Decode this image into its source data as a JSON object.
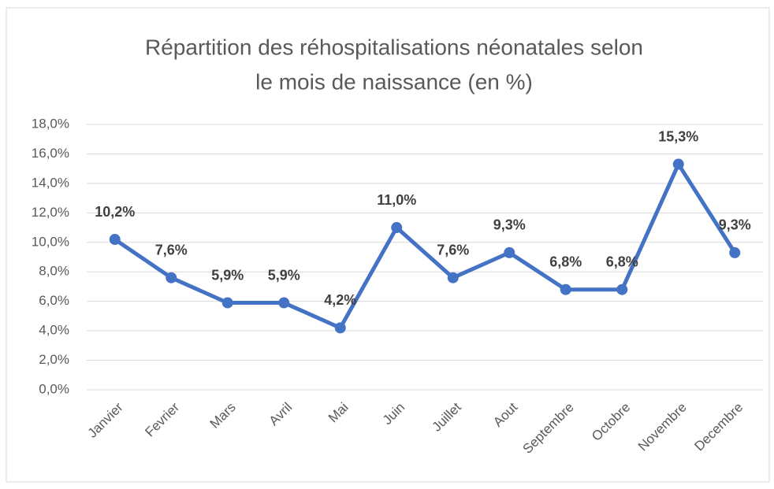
{
  "chart_data": {
    "type": "line",
    "title": [
      "Répartition des réhospitalisations néonatales selon",
      "le mois de naissance (en %)"
    ],
    "categories": [
      "Janvier",
      "Fevrier",
      "Mars",
      "Avril",
      "Mai",
      "Juin",
      "Juillet",
      "Aout",
      "Septembre",
      "Octobre",
      "Novembre",
      "Decembre"
    ],
    "series": [
      {
        "color": "#4472c4",
        "values": [
          10.2,
          7.6,
          5.9,
          5.9,
          4.2,
          11.0,
          7.6,
          9.3,
          6.8,
          6.8,
          15.3,
          9.3
        ],
        "value_labels": [
          "10,2%",
          "7,6%",
          "5,9%",
          "5,9%",
          "4,2%",
          "11,0%",
          "7,6%",
          "9,3%",
          "6,8%",
          "6,8%",
          "15,3%",
          "9,3%"
        ]
      }
    ],
    "ylim": [
      0,
      18
    ],
    "yticks": [
      {
        "value": 0,
        "label": "0,0%"
      },
      {
        "value": 2,
        "label": "2,0%"
      },
      {
        "value": 4,
        "label": "4,0%"
      },
      {
        "value": 6,
        "label": "6,0%"
      },
      {
        "value": 8,
        "label": "8,0%"
      },
      {
        "value": 10,
        "label": "10,0%"
      },
      {
        "value": 12,
        "label": "12,0%"
      },
      {
        "value": 14,
        "label": "14,0%"
      },
      {
        "value": 16,
        "label": "16,0%"
      },
      {
        "value": 18,
        "label": "18,0%"
      }
    ],
    "grid": true
  }
}
